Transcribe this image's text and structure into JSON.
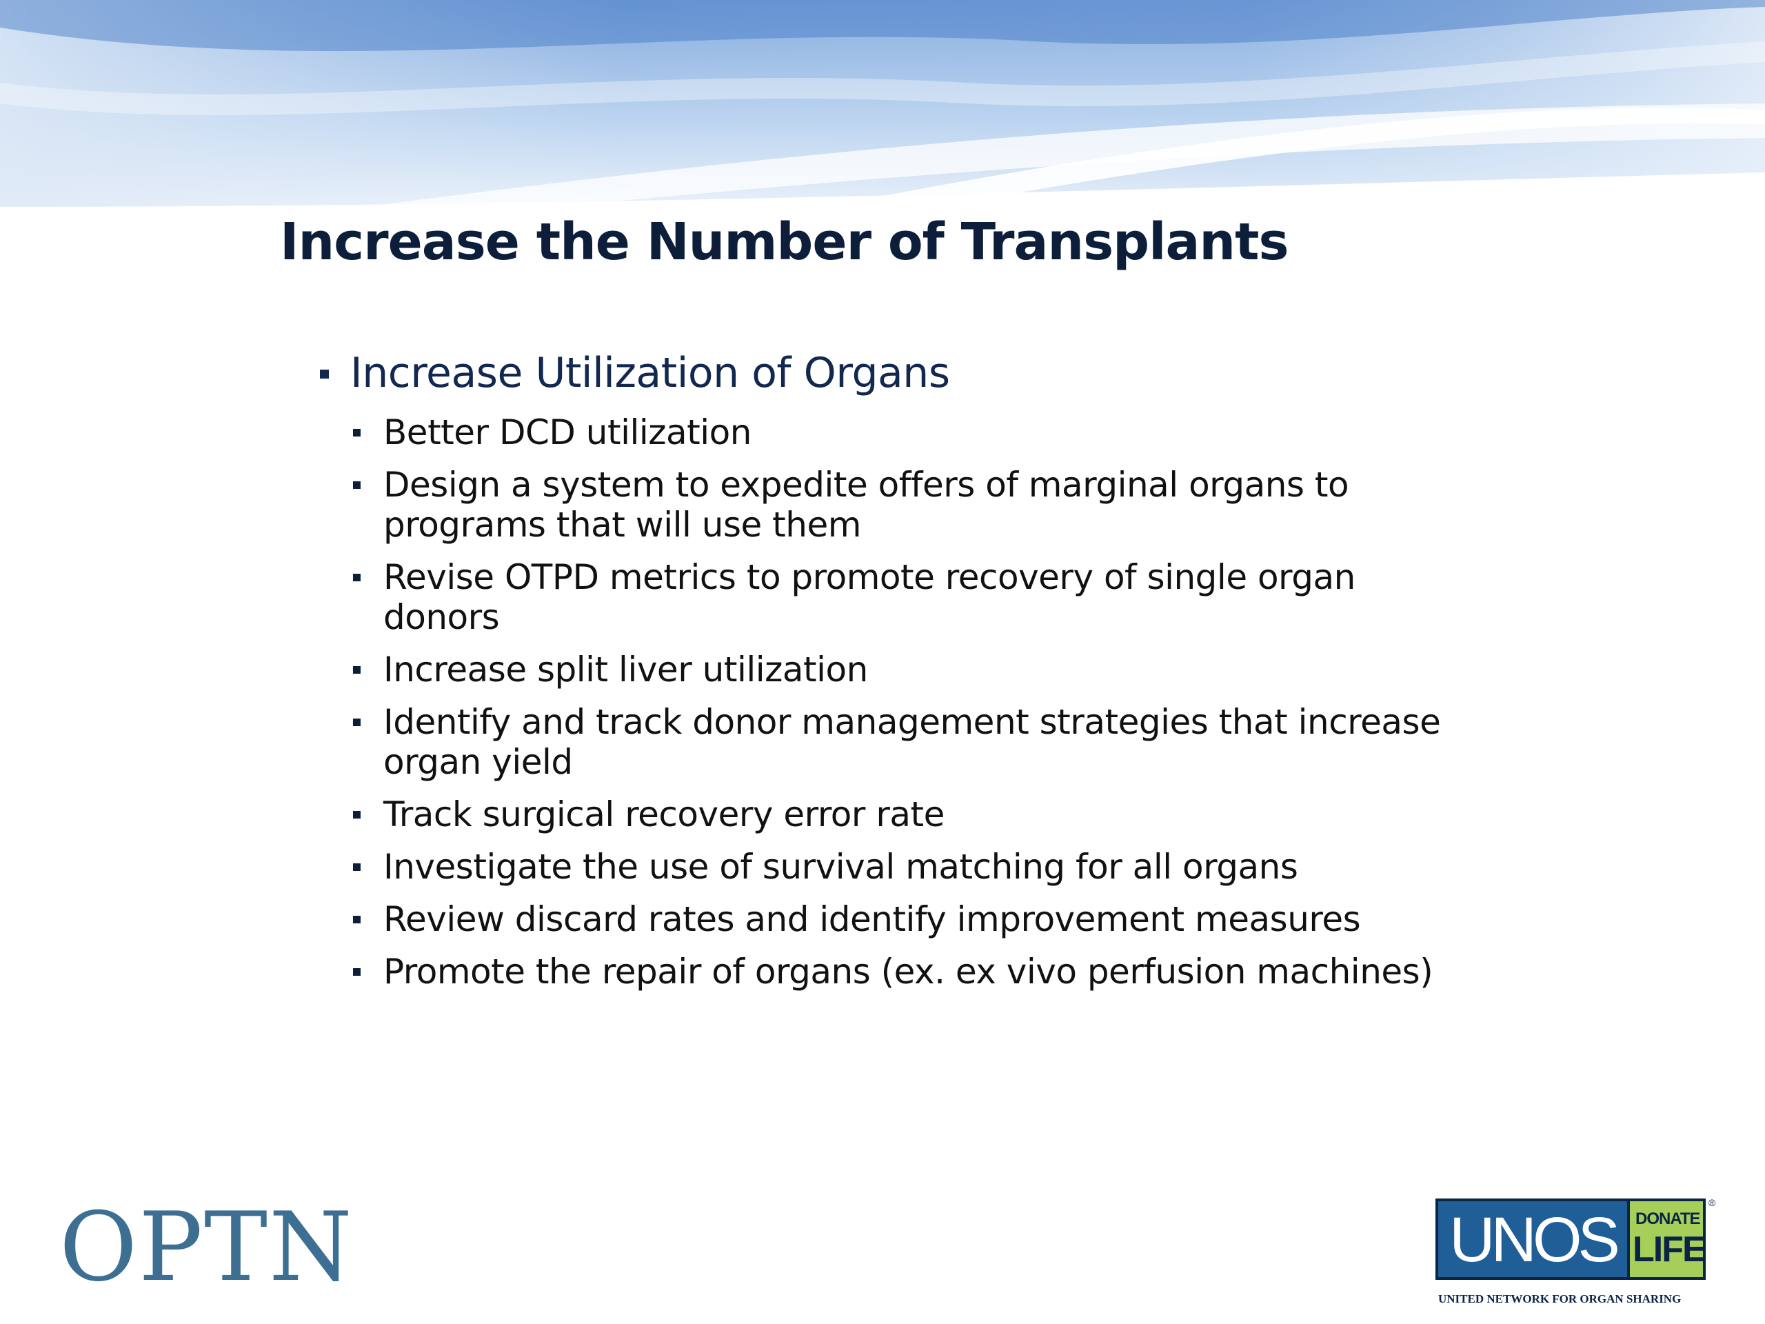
{
  "slide": {
    "title": "Increase the Number of Transplants",
    "main_bullet": "Increase Utilization of Organs",
    "sub_bullets": [
      {
        "lines": [
          "Better DCD utilization"
        ]
      },
      {
        "lines": [
          "Design a system to expedite offers of marginal organs to",
          "programs that will use them"
        ]
      },
      {
        "lines": [
          "Revise OTPD metrics to promote recovery of single organ",
          "donors"
        ]
      },
      {
        "lines": [
          "Increase split liver utilization"
        ]
      },
      {
        "lines": [
          "Identify and track donor management strategies that increase",
          "organ yield"
        ]
      },
      {
        "lines": [
          "Track surgical recovery error rate"
        ]
      },
      {
        "lines": [
          "Investigate the use of survival matching for all organs"
        ]
      },
      {
        "lines": [
          "Review discard rates and identify improvement measures"
        ]
      },
      {
        "lines": [
          "Promote the repair of organs (ex. ex vivo perfusion machines)"
        ]
      }
    ]
  },
  "footer": {
    "optn_logo_text": "OPTN",
    "unos_logo": {
      "unos_text": "UNOS",
      "donate_text": "DONATE",
      "life_text": "LIFE",
      "registered_mark": "®",
      "tagline": "UNITED NETWORK FOR ORGAN SHARING"
    }
  },
  "colors": {
    "title": "#0c1e3a",
    "main_bullet": "#12284f",
    "body_text": "#111111",
    "optn_logo": "#3d6f92",
    "unos_blue": "#1f5e96",
    "donate_life_green": "#a6cf5a",
    "banner_blue": "#4f86d0"
  }
}
